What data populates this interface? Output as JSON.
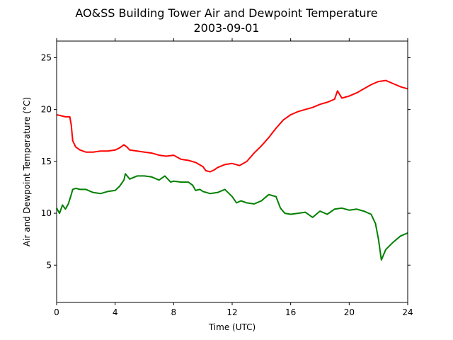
{
  "chart_data": {
    "type": "line",
    "title": "AO&SS Building Tower Air and Dewpoint Temperature",
    "subtitle": "2003-09-01",
    "xlabel": "Time (UTC)",
    "ylabel": "Air and Dewpoint Temperature (°C)",
    "xlim": [
      0,
      24
    ],
    "ylim": [
      1.4,
      26.6
    ],
    "xticks": [
      0,
      4,
      8,
      12,
      16,
      20,
      24
    ],
    "xtick_labels": [
      "0",
      "4",
      "8",
      "12",
      "16",
      "20",
      "24"
    ],
    "yticks": [
      5,
      10,
      15,
      20,
      25
    ],
    "ytick_labels": [
      "5",
      "10",
      "15",
      "20",
      "25"
    ],
    "grid": false,
    "series": [
      {
        "color": "#ff0000",
        "x": [
          0,
          0.3,
          0.6,
          0.9,
          1.0,
          1.1,
          1.3,
          1.6,
          2.0,
          2.5,
          3.0,
          3.5,
          4.0,
          4.3,
          4.6,
          4.8,
          5.0,
          5.5,
          6.0,
          6.5,
          7.0,
          7.5,
          8.0,
          8.5,
          9.0,
          9.5,
          10.0,
          10.2,
          10.5,
          10.8,
          11.0,
          11.5,
          12.0,
          12.5,
          13.0,
          13.5,
          14.0,
          14.5,
          15.0,
          15.5,
          16.0,
          16.5,
          17.0,
          17.5,
          18.0,
          18.5,
          19.0,
          19.2,
          19.5,
          20.0,
          20.5,
          21.0,
          21.5,
          22.0,
          22.5,
          23.0,
          23.5,
          24.0
        ],
        "values": [
          19.5,
          19.4,
          19.3,
          19.3,
          18.5,
          17.0,
          16.4,
          16.1,
          15.9,
          15.9,
          16.0,
          16.0,
          16.1,
          16.3,
          16.6,
          16.4,
          16.1,
          16.0,
          15.9,
          15.8,
          15.6,
          15.5,
          15.6,
          15.2,
          15.1,
          14.9,
          14.5,
          14.1,
          14.0,
          14.2,
          14.4,
          14.7,
          14.8,
          14.6,
          15.0,
          15.8,
          16.5,
          17.3,
          18.2,
          19.0,
          19.5,
          19.8,
          20.0,
          20.2,
          20.5,
          20.7,
          21.0,
          21.8,
          21.1,
          21.3,
          21.6,
          22.0,
          22.4,
          22.7,
          22.8,
          22.5,
          22.2,
          22.0
        ]
      },
      {
        "color": "#008000",
        "x": [
          0,
          0.2,
          0.4,
          0.6,
          0.8,
          1.0,
          1.1,
          1.3,
          1.6,
          2.0,
          2.5,
          3.0,
          3.5,
          4.0,
          4.3,
          4.6,
          4.7,
          5.0,
          5.5,
          6.0,
          6.5,
          7.0,
          7.4,
          7.8,
          8.0,
          8.5,
          9.0,
          9.3,
          9.5,
          9.8,
          10.0,
          10.5,
          11.0,
          11.5,
          12.0,
          12.3,
          12.6,
          13.0,
          13.5,
          14.0,
          14.5,
          15.0,
          15.3,
          15.6,
          16.0,
          16.5,
          17.0,
          17.5,
          18.0,
          18.5,
          19.0,
          19.5,
          20.0,
          20.5,
          21.0,
          21.5,
          21.8,
          22.0,
          22.2,
          22.5,
          23.0,
          23.5,
          24.0
        ],
        "values": [
          10.5,
          10.0,
          10.8,
          10.4,
          10.9,
          11.8,
          12.3,
          12.4,
          12.3,
          12.3,
          12.0,
          11.9,
          12.1,
          12.2,
          12.6,
          13.2,
          13.8,
          13.3,
          13.6,
          13.6,
          13.5,
          13.2,
          13.6,
          13.0,
          13.1,
          13.0,
          13.0,
          12.7,
          12.2,
          12.3,
          12.1,
          11.9,
          12.0,
          12.3,
          11.6,
          11.0,
          11.2,
          11.0,
          10.9,
          11.2,
          11.8,
          11.6,
          10.5,
          10.0,
          9.9,
          10.0,
          10.1,
          9.6,
          10.2,
          9.9,
          10.4,
          10.5,
          10.3,
          10.4,
          10.2,
          9.9,
          9.0,
          7.5,
          5.5,
          6.5,
          7.2,
          7.8,
          8.1
        ]
      }
    ]
  }
}
